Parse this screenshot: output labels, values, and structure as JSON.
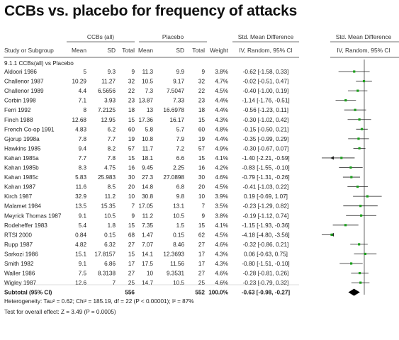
{
  "title": "CCBs vs. placebo for frequency of attacks",
  "header": {
    "group1": "CCBs (all)",
    "group2": "Placebo",
    "effect": "Std. Mean Difference",
    "effect_plot": "Std. Mean Difference",
    "study": "Study or Subgroup",
    "mean": "Mean",
    "sd": "SD",
    "total": "Total",
    "weight": "Weight",
    "method": "IV, Random, 95% CI",
    "method_plot": "IV, Random, 95% CI"
  },
  "subgroup_label": "9.1.1 CCBs(all) vs Placebo",
  "chart_data": {
    "type": "forest",
    "xlim": [
      -2,
      2
    ],
    "studies": [
      {
        "name": "Aldoori 1986",
        "m1": "5",
        "sd1": "9.3",
        "n1": "9",
        "m2": "11.3",
        "sd2": "9.9",
        "n2": "9",
        "weight": "3.8%",
        "ci_text": "-0.62 [-1.58, 0.33]",
        "est": -0.62,
        "lo": -1.58,
        "hi": 0.33
      },
      {
        "name": "Challenor 1987",
        "m1": "10.29",
        "sd1": "11.27",
        "n1": "32",
        "m2": "10.5",
        "sd2": "9.17",
        "n2": "32",
        "weight": "4.7%",
        "ci_text": "-0.02 [-0.51, 0.47]",
        "est": -0.02,
        "lo": -0.51,
        "hi": 0.47
      },
      {
        "name": "Challenor 1989",
        "m1": "4.4",
        "sd1": "6.5656",
        "n1": "22",
        "m2": "7.3",
        "sd2": "7.5047",
        "n2": "22",
        "weight": "4.5%",
        "ci_text": "-0.40 [-1.00, 0.19]",
        "est": -0.4,
        "lo": -1.0,
        "hi": 0.19
      },
      {
        "name": "Corbin 1998",
        "m1": "7.1",
        "sd1": "3.93",
        "n1": "23",
        "m2": "13.87",
        "sd2": "7.33",
        "n2": "23",
        "weight": "4.4%",
        "ci_text": "-1.14 [-1.76, -0.51]",
        "est": -1.14,
        "lo": -1.76,
        "hi": -0.51
      },
      {
        "name": "Ferri 1992",
        "m1": "8",
        "sd1": "7.2125",
        "n1": "18",
        "m2": "13",
        "sd2": "16.6978",
        "n2": "18",
        "weight": "4.4%",
        "ci_text": "-0.56 [-1.23, 0.11]",
        "est": -0.56,
        "lo": -1.23,
        "hi": 0.11
      },
      {
        "name": "Finch 1988",
        "m1": "12.68",
        "sd1": "12.95",
        "n1": "15",
        "m2": "17.36",
        "sd2": "16.17",
        "n2": "15",
        "weight": "4.3%",
        "ci_text": "-0.30 [-1.02, 0.42]",
        "est": -0.3,
        "lo": -1.02,
        "hi": 0.42
      },
      {
        "name": "French Co-op 1991",
        "m1": "4.83",
        "sd1": "6.2",
        "n1": "60",
        "m2": "5.8",
        "sd2": "5.7",
        "n2": "60",
        "weight": "4.8%",
        "ci_text": "-0.15 [-0.50, 0.21]",
        "est": -0.15,
        "lo": -0.5,
        "hi": 0.21
      },
      {
        "name": "Gjorup 1998a",
        "m1": "7.8",
        "sd1": "7.7",
        "n1": "19",
        "m2": "10.8",
        "sd2": "7.9",
        "n2": "19",
        "weight": "4.4%",
        "ci_text": "-0.35 [-0.99, 0.29]",
        "est": -0.35,
        "lo": -0.99,
        "hi": 0.29
      },
      {
        "name": "Hawkins 1985",
        "m1": "9.4",
        "sd1": "8.2",
        "n1": "57",
        "m2": "11.7",
        "sd2": "7.2",
        "n2": "57",
        "weight": "4.9%",
        "ci_text": "-0.30 [-0.67, 0.07]",
        "est": -0.3,
        "lo": -0.67,
        "hi": 0.07
      },
      {
        "name": "Kahan 1985a",
        "m1": "7.7",
        "sd1": "7.8",
        "n1": "15",
        "m2": "18.1",
        "sd2": "6.6",
        "n2": "15",
        "weight": "4.1%",
        "ci_text": "-1.40 [-2.21, -0.59]",
        "est": -1.4,
        "lo": -2.21,
        "hi": -0.59
      },
      {
        "name": "Kahan 1985b",
        "m1": "8.3",
        "sd1": "4.75",
        "n1": "16",
        "m2": "9.45",
        "sd2": "2.25",
        "n2": "16",
        "weight": "4.2%",
        "ci_text": "-0.83 [-1.55, -0.10]",
        "est": -0.83,
        "lo": -1.55,
        "hi": -0.1
      },
      {
        "name": "Kahan 1985c",
        "m1": "5.83",
        "sd1": "25.983",
        "n1": "30",
        "m2": "27.3",
        "sd2": "27.0898",
        "n2": "30",
        "weight": "4.6%",
        "ci_text": "-0.79 [-1.31, -0.26]",
        "est": -0.79,
        "lo": -1.31,
        "hi": -0.26
      },
      {
        "name": "Kahan 1987",
        "m1": "11.6",
        "sd1": "8.5",
        "n1": "20",
        "m2": "14.8",
        "sd2": "6.8",
        "n2": "20",
        "weight": "4.5%",
        "ci_text": "-0.41 [-1.03, 0.22]",
        "est": -0.41,
        "lo": -1.03,
        "hi": 0.22
      },
      {
        "name": "Kirch 1987",
        "m1": "32.9",
        "sd1": "11.2",
        "n1": "10",
        "m2": "30.8",
        "sd2": "9.8",
        "n2": "10",
        "weight": "3.9%",
        "ci_text": "0.19 [-0.69, 1.07]",
        "est": 0.19,
        "lo": -0.69,
        "hi": 1.07
      },
      {
        "name": "Malamet 1984",
        "m1": "13.5",
        "sd1": "15.35",
        "n1": "7",
        "m2": "17.05",
        "sd2": "13.1",
        "n2": "7",
        "weight": "3.5%",
        "ci_text": "-0.23 [-1.29, 0.82]",
        "est": -0.23,
        "lo": -1.29,
        "hi": 0.82
      },
      {
        "name": "Meyrick Thomas 1987",
        "m1": "9.1",
        "sd1": "10.5",
        "n1": "9",
        "m2": "11.2",
        "sd2": "10.5",
        "n2": "9",
        "weight": "3.8%",
        "ci_text": "-0.19 [-1.12, 0.74]",
        "est": -0.19,
        "lo": -1.12,
        "hi": 0.74
      },
      {
        "name": "Rodeheffer 1983",
        "m1": "5.4",
        "sd1": "1.8",
        "n1": "15",
        "m2": "7.35",
        "sd2": "1.5",
        "n2": "15",
        "weight": "4.1%",
        "ci_text": "-1.15 [-1.93, -0.36]",
        "est": -1.15,
        "lo": -1.93,
        "hi": -0.36
      },
      {
        "name": "RTSI 2000",
        "m1": "0.84",
        "sd1": "0.15",
        "n1": "68",
        "m2": "1.47",
        "sd2": "0.15",
        "n2": "62",
        "weight": "4.5%",
        "ci_text": "-4.18 [-4.80, -3.56]",
        "est": -4.18,
        "lo": -4.8,
        "hi": -3.56
      },
      {
        "name": "Rupp 1987",
        "m1": "4.82",
        "sd1": "6.32",
        "n1": "27",
        "m2": "7.07",
        "sd2": "8.46",
        "n2": "27",
        "weight": "4.6%",
        "ci_text": "-0.32 [-0.86, 0.21]",
        "est": -0.32,
        "lo": -0.86,
        "hi": 0.21
      },
      {
        "name": "Sarkozi 1986",
        "m1": "15.1",
        "sd1": "17.8157",
        "n1": "15",
        "m2": "14.1",
        "sd2": "12.3693",
        "n2": "17",
        "weight": "4.3%",
        "ci_text": "0.06 [-0.63, 0.75]",
        "est": 0.06,
        "lo": -0.63,
        "hi": 0.75
      },
      {
        "name": "Smith 1982",
        "m1": "9.1",
        "sd1": "6.86",
        "n1": "17",
        "m2": "17.5",
        "sd2": "11.56",
        "n2": "17",
        "weight": "4.3%",
        "ci_text": "-0.80 [-1.51, -0.10]",
        "est": -0.8,
        "lo": -1.51,
        "hi": -0.1
      },
      {
        "name": "Waller 1986",
        "m1": "7.5",
        "sd1": "8.3138",
        "n1": "27",
        "m2": "10",
        "sd2": "9.3531",
        "n2": "27",
        "weight": "4.6%",
        "ci_text": "-0.28 [-0.81, 0.26]",
        "est": -0.28,
        "lo": -0.81,
        "hi": 0.26
      },
      {
        "name": "Wigley 1987",
        "m1": "12.6",
        "sd1": "7",
        "n1": "25",
        "m2": "14.7",
        "sd2": "10.5",
        "n2": "25",
        "weight": "4.6%",
        "ci_text": "-0.23 [-0.79, 0.32]",
        "est": -0.23,
        "lo": -0.79,
        "hi": 0.32
      }
    ],
    "subtotal": {
      "name": "Subtotal (95% CI)",
      "n1": "556",
      "n2": "552",
      "weight": "100.0%",
      "ci_text": "-0.63 [-0.98, -0.27]",
      "est": -0.63,
      "lo": -0.98,
      "hi": -0.27
    },
    "heterogeneity": "Heterogeneity: Tau² = 0.62; Chi² = 185.19, df = 22 (P < 0.00001); I² = 87%",
    "overall_effect": "Test for overall effect: Z = 3.49 (P = 0.0005)"
  }
}
